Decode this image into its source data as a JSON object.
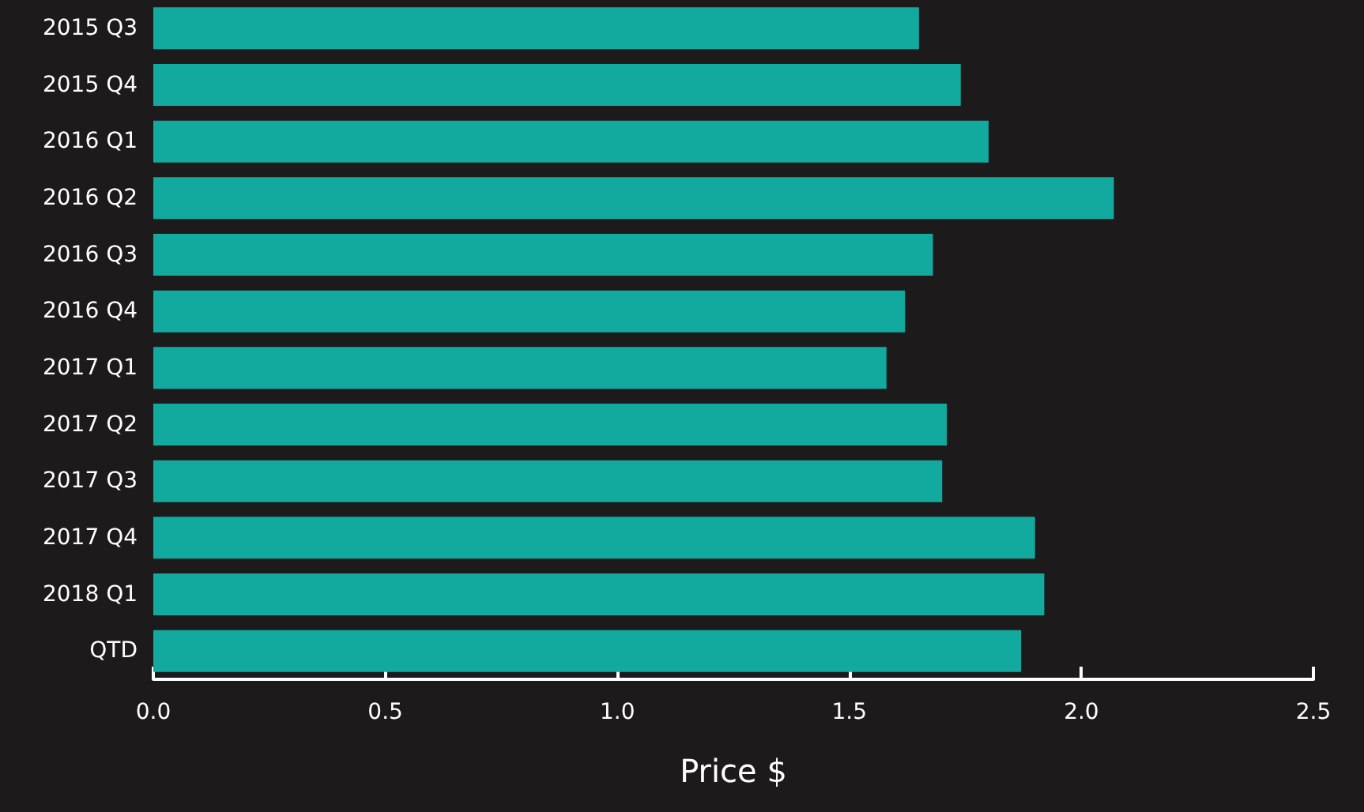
{
  "chart_data": {
    "type": "bar",
    "orientation": "horizontal",
    "xlabel": "Price $",
    "categories": [
      "2015 Q3",
      "2015 Q4",
      "2016 Q1",
      "2016 Q2",
      "2016 Q3",
      "2016 Q4",
      "2017 Q1",
      "2017 Q2",
      "2017 Q3",
      "2017 Q4",
      "2018 Q1",
      "QTD"
    ],
    "values": [
      1.65,
      1.74,
      1.8,
      2.07,
      1.68,
      1.62,
      1.58,
      1.71,
      1.7,
      1.9,
      1.92,
      1.87
    ],
    "color": "#12a99e",
    "xlim": [
      0,
      2.5
    ],
    "xticks": [
      {
        "value": 0,
        "label": "0.0"
      },
      {
        "value": 0.5,
        "label": "0.5"
      },
      {
        "value": 1,
        "label": "1.0"
      },
      {
        "value": 1.5,
        "label": "1.5"
      },
      {
        "value": 2,
        "label": "2.0"
      },
      {
        "value": 2.5,
        "label": "2.5"
      }
    ],
    "grid": false
  }
}
